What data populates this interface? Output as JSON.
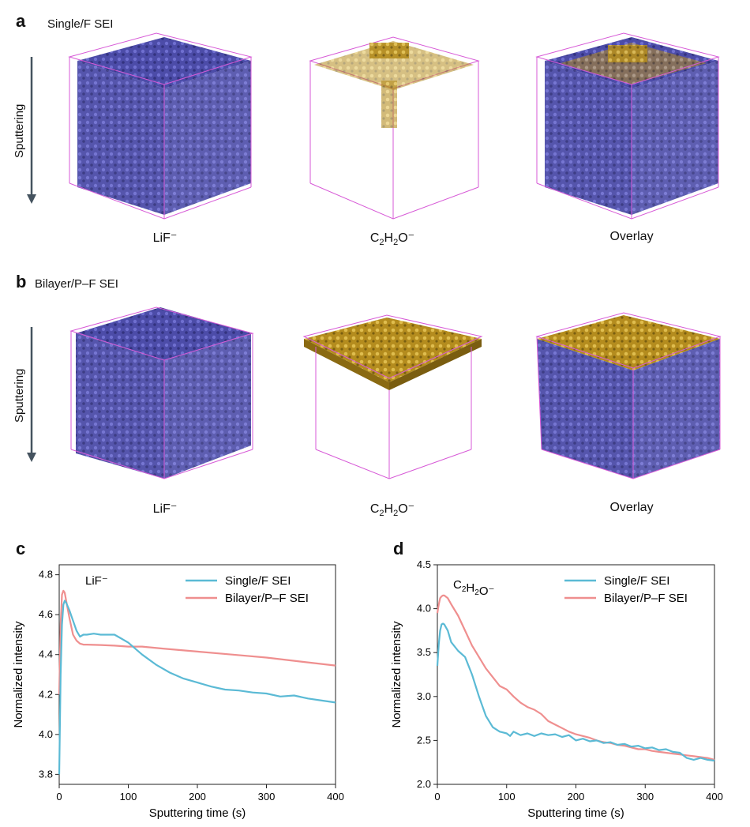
{
  "panels": {
    "a": {
      "letter": "a",
      "title": "Single/F SEI",
      "side_label": "Sputtering",
      "labels": [
        "LiF⁻",
        "Overlay"
      ],
      "c2": "C",
      "h2": "H",
      "o": "O⁻",
      "sub": "2"
    },
    "b": {
      "letter": "b",
      "title": "Bilayer/P–F SEI",
      "side_label": "Sputtering",
      "labels": [
        "LiF⁻",
        "Overlay"
      ],
      "c2": "C",
      "h2": "H",
      "o": "O⁻",
      "sub": "2"
    },
    "c": {
      "letter": "c"
    },
    "d": {
      "letter": "d"
    }
  },
  "colors": {
    "blue_iso": "#5a5ab0",
    "gold_iso": "#c9a22a",
    "box": "#d75ad7",
    "single": "#5bbad5",
    "bilayer": "#ef8f8f"
  },
  "chart_data": [
    {
      "type": "line",
      "panel": "c",
      "annotation": "LiF⁻",
      "xlabel": "Sputtering time (s)",
      "ylabel": "Normalized intensity",
      "xlim": [
        0,
        400
      ],
      "ylim": [
        3.75,
        4.85
      ],
      "xticks": [
        0,
        100,
        200,
        300,
        400
      ],
      "yticks": [
        3.8,
        4.0,
        4.2,
        4.4,
        4.6,
        4.8
      ],
      "ytick_labels": [
        "3.8",
        "4.0",
        "4.2",
        "4.4",
        "4.6",
        "4.8"
      ],
      "legend_position": "top-right",
      "series": [
        {
          "name": "Single/F SEI",
          "x": [
            0,
            2,
            4,
            6,
            8,
            10,
            15,
            20,
            25,
            30,
            35,
            40,
            50,
            60,
            70,
            80,
            90,
            100,
            120,
            140,
            160,
            180,
            200,
            220,
            240,
            260,
            280,
            300,
            320,
            340,
            360,
            380,
            400
          ],
          "y": [
            3.8,
            4.3,
            4.55,
            4.65,
            4.67,
            4.66,
            4.62,
            4.57,
            4.52,
            4.49,
            4.5,
            4.5,
            4.505,
            4.5,
            4.5,
            4.5,
            4.48,
            4.46,
            4.4,
            4.35,
            4.31,
            4.28,
            4.26,
            4.24,
            4.225,
            4.22,
            4.21,
            4.205,
            4.19,
            4.195,
            4.18,
            4.17,
            4.16
          ]
        },
        {
          "name": "Bilayer/P–F SEI",
          "x": [
            0,
            2,
            4,
            6,
            8,
            10,
            15,
            20,
            25,
            30,
            35,
            40,
            60,
            80,
            100,
            120,
            150,
            200,
            250,
            300,
            350,
            400
          ],
          "y": [
            4.2,
            4.55,
            4.7,
            4.72,
            4.71,
            4.67,
            4.58,
            4.5,
            4.47,
            4.455,
            4.45,
            4.45,
            4.448,
            4.445,
            4.44,
            4.44,
            4.43,
            4.415,
            4.4,
            4.385,
            4.365,
            4.345
          ]
        }
      ]
    },
    {
      "type": "line",
      "panel": "d",
      "annotation": {
        "c": "C",
        "h": "H",
        "o": "O⁻",
        "sub": "2"
      },
      "xlabel": "Sputtering time (s)",
      "ylabel": "Normalized intensity",
      "xlim": [
        0,
        400
      ],
      "ylim": [
        2.0,
        4.5
      ],
      "xticks": [
        0,
        100,
        200,
        300,
        400
      ],
      "yticks": [
        2.0,
        2.5,
        3.0,
        3.5,
        4.0,
        4.5
      ],
      "ytick_labels": [
        "2.0",
        "2.5",
        "3.0",
        "3.5",
        "4.0",
        "4.5"
      ],
      "legend_position": "top-right",
      "series": [
        {
          "name": "Single/F SEI",
          "x": [
            0,
            2,
            4,
            6,
            8,
            10,
            15,
            20,
            30,
            40,
            50,
            60,
            70,
            80,
            90,
            100,
            105,
            110,
            120,
            130,
            140,
            150,
            160,
            170,
            180,
            190,
            200,
            210,
            220,
            230,
            240,
            250,
            260,
            270,
            280,
            290,
            300,
            310,
            320,
            330,
            340,
            350,
            360,
            370,
            380,
            390,
            400
          ],
          "y": [
            3.35,
            3.6,
            3.75,
            3.82,
            3.83,
            3.82,
            3.75,
            3.62,
            3.52,
            3.45,
            3.25,
            3.0,
            2.78,
            2.65,
            2.6,
            2.58,
            2.55,
            2.6,
            2.56,
            2.58,
            2.55,
            2.58,
            2.56,
            2.57,
            2.54,
            2.56,
            2.5,
            2.52,
            2.49,
            2.5,
            2.47,
            2.48,
            2.45,
            2.46,
            2.43,
            2.44,
            2.41,
            2.42,
            2.39,
            2.4,
            2.37,
            2.36,
            2.3,
            2.28,
            2.3,
            2.28,
            2.27
          ]
        },
        {
          "name": "Bilayer/P–F SEI",
          "x": [
            0,
            2,
            4,
            6,
            8,
            10,
            15,
            20,
            30,
            40,
            50,
            60,
            70,
            80,
            90,
            100,
            110,
            120,
            130,
            140,
            150,
            160,
            170,
            180,
            190,
            200,
            210,
            220,
            230,
            240,
            250,
            260,
            270,
            280,
            290,
            300,
            310,
            320,
            330,
            340,
            350,
            360,
            370,
            380,
            390,
            400
          ],
          "y": [
            3.95,
            4.05,
            4.12,
            4.14,
            4.15,
            4.15,
            4.12,
            4.05,
            3.92,
            3.75,
            3.58,
            3.45,
            3.32,
            3.22,
            3.12,
            3.08,
            3.0,
            2.93,
            2.88,
            2.85,
            2.8,
            2.72,
            2.68,
            2.64,
            2.6,
            2.57,
            2.55,
            2.53,
            2.5,
            2.48,
            2.47,
            2.45,
            2.44,
            2.42,
            2.4,
            2.4,
            2.38,
            2.37,
            2.36,
            2.35,
            2.34,
            2.33,
            2.32,
            2.31,
            2.3,
            2.28
          ]
        }
      ]
    }
  ]
}
